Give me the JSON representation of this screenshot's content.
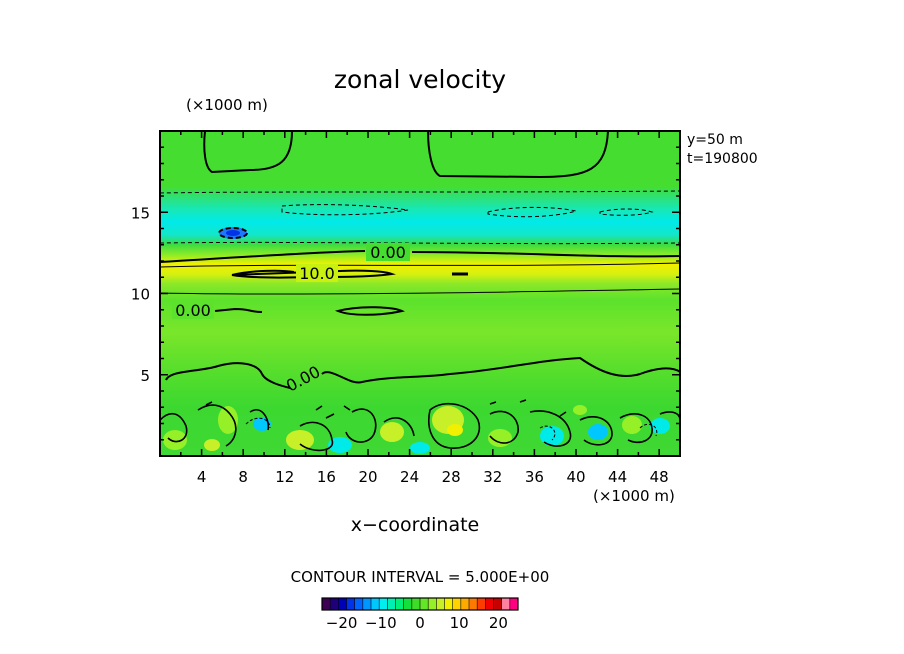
{
  "chart_data": {
    "type": "heatmap",
    "title": "zonal velocity",
    "xlabel": "x−coordinate",
    "x_unit": "(×1000 m)",
    "y_unit": "(×1000 m)",
    "xlim": [
      0,
      50
    ],
    "ylim": [
      0,
      20
    ],
    "x_ticks": [
      4,
      8,
      12,
      16,
      20,
      24,
      28,
      32,
      36,
      40,
      44,
      48
    ],
    "y_ticks": [
      5,
      10,
      15
    ],
    "info": [
      "y=50  m",
      "t=190800"
    ],
    "contour_interval_text": "CONTOUR INTERVAL = 5.000E+00",
    "contour_labels": [
      {
        "text": "0.00",
        "x": 22,
        "y": 12.6
      },
      {
        "text": "10.0",
        "x": 15.5,
        "y": 11.2
      },
      {
        "text": "0.00",
        "x": 3.3,
        "y": 9.0
      },
      {
        "text": "0.00",
        "x": 14,
        "y": 4.7
      }
    ],
    "colorbar": {
      "min": -25,
      "max": 25,
      "ticks": [
        -20,
        -10,
        0,
        10,
        20
      ],
      "tick_labels": [
        "−20",
        "−10",
        "0",
        "10",
        "20"
      ]
    },
    "colors": [
      "#3d0052",
      "#1f007a",
      "#0000b8",
      "#0032e6",
      "#0064ff",
      "#0096ff",
      "#00c8ff",
      "#00eeee",
      "#00f0b4",
      "#00f078",
      "#14e03c",
      "#3cdc28",
      "#64e628",
      "#96f028",
      "#c8f028",
      "#f0f000",
      "#ffd200",
      "#ffaa00",
      "#ff7800",
      "#ff3c00",
      "#f00000",
      "#c80000",
      "#ff80a0",
      "#ff0080"
    ]
  }
}
